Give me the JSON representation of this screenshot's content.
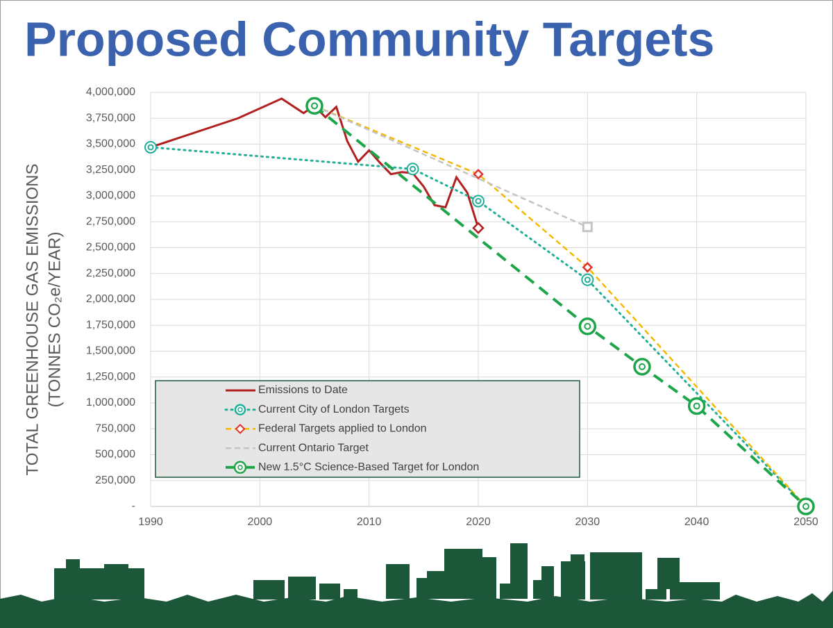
{
  "chart_data": {
    "type": "line",
    "title": "Proposed Community Targets",
    "y_label_lines": [
      "TOTAL GREENHOUSE GAS EMISSIONS",
      "(TONNES CO₂e/YEAR)"
    ],
    "xlim": [
      1990,
      2050
    ],
    "xticks": [
      1990,
      2000,
      2010,
      2020,
      2030,
      2040,
      2050
    ],
    "ylim": [
      0,
      4000000
    ],
    "yticks": [
      {
        "value": 0,
        "label": "-"
      },
      {
        "value": 250000,
        "label": "250,000"
      },
      {
        "value": 500000,
        "label": "500,000"
      },
      {
        "value": 750000,
        "label": "750,000"
      },
      {
        "value": 1000000,
        "label": "1,000,000"
      },
      {
        "value": 1250000,
        "label": "1,250,000"
      },
      {
        "value": 1500000,
        "label": "1,500,000"
      },
      {
        "value": 1750000,
        "label": "1,750,000"
      },
      {
        "value": 2000000,
        "label": "2,000,000"
      },
      {
        "value": 2250000,
        "label": "2,250,000"
      },
      {
        "value": 2500000,
        "label": "2,500,000"
      },
      {
        "value": 2750000,
        "label": "2,750,000"
      },
      {
        "value": 3000000,
        "label": "3,000,000"
      },
      {
        "value": 3250000,
        "label": "3,250,000"
      },
      {
        "value": 3500000,
        "label": "3,500,000"
      },
      {
        "value": 3750000,
        "label": "3,750,000"
      },
      {
        "value": 4000000,
        "label": "4,000,000"
      }
    ],
    "grid": true,
    "series": [
      {
        "name": "Emissions to Date",
        "color": "#b21f1f",
        "line_style": "solid",
        "marker": "diamond-last",
        "x": [
          1990,
          1998,
          2002,
          2004,
          2005,
          2006,
          2007,
          2008,
          2009,
          2010,
          2011,
          2012,
          2013,
          2014,
          2015,
          2016,
          2017,
          2018,
          2019,
          2020
        ],
        "values": [
          3470000,
          3750000,
          3940000,
          3800000,
          3870000,
          3760000,
          3860000,
          3530000,
          3330000,
          3440000,
          3320000,
          3210000,
          3230000,
          3220000,
          3090000,
          2910000,
          2890000,
          3180000,
          3030000,
          2690000
        ]
      },
      {
        "name": "Current City of London Targets",
        "color": "#1fae96",
        "line_style": "dotted",
        "marker": "ring",
        "x": [
          1990,
          2014,
          2020,
          2030,
          2050
        ],
        "values": [
          3470000,
          3260000,
          2950000,
          2190000,
          0
        ]
      },
      {
        "name": "Federal Targets applied to London",
        "color": "#f5b800",
        "marker_color": "#e0302a",
        "line_style": "dashed",
        "marker": "diamond",
        "x": [
          2005,
          2020,
          2030,
          2050
        ],
        "values": [
          3870000,
          3210000,
          2310000,
          0
        ]
      },
      {
        "name": "Current Ontario Target",
        "color": "#c4c4c4",
        "line_style": "dashed",
        "marker": "square-last",
        "x": [
          2005,
          2030
        ],
        "values": [
          3870000,
          2700000
        ]
      },
      {
        "name": "New 1.5°C Science-Based Target for London",
        "color": "#1ea54a",
        "line_style": "bigdash",
        "marker": "bigring",
        "x": [
          2005,
          2030,
          2035,
          2040,
          2050
        ],
        "values": [
          3870000,
          1740000,
          1350000,
          970000,
          0
        ]
      }
    ]
  }
}
